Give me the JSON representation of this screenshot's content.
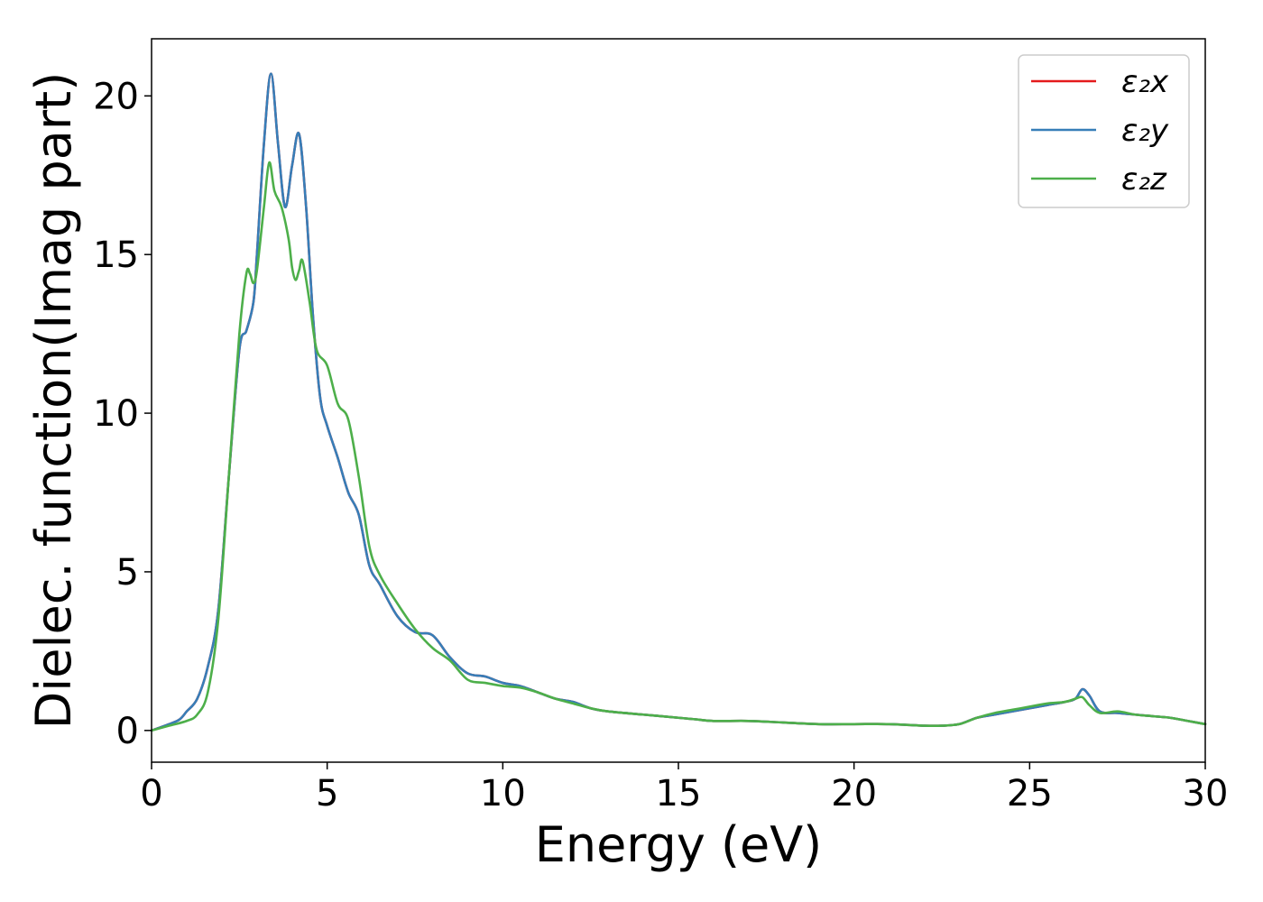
{
  "chart_data": {
    "type": "line",
    "title": "",
    "xlabel": "Energy (eV)",
    "ylabel": "Dielec. function(Imag part)",
    "xlim": [
      0,
      30
    ],
    "ylim": [
      -1,
      21.8
    ],
    "xticks": [
      "0",
      "5",
      "10",
      "15",
      "20",
      "25",
      "30"
    ],
    "yticks": [
      "0",
      "5",
      "10",
      "15",
      "20"
    ],
    "grid": false,
    "legend_position": "top-right",
    "series": [
      {
        "name": "ε₂x",
        "color": "#e41a1c",
        "x": [
          0,
          0.5,
          0.8,
          1.0,
          1.3,
          1.6,
          1.9,
          2.2,
          2.5,
          2.7,
          2.9,
          3.0,
          3.2,
          3.4,
          3.6,
          3.8,
          4.0,
          4.2,
          4.4,
          4.6,
          4.8,
          5.0,
          5.3,
          5.6,
          5.9,
          6.2,
          6.5,
          7.0,
          7.5,
          8.0,
          8.5,
          9.0,
          9.5,
          10.0,
          10.5,
          11.0,
          11.5,
          12.0,
          12.5,
          13.0,
          14.0,
          15.0,
          15.5,
          16.0,
          17.0,
          18.0,
          19.0,
          20.0,
          21.0,
          22.0,
          22.5,
          23.0,
          23.5,
          24.0,
          24.5,
          25.0,
          25.5,
          26.0,
          26.3,
          26.5,
          26.7,
          27.0,
          27.5,
          28.0,
          28.5,
          29.0,
          29.5,
          30.0
        ],
        "values": [
          0,
          0.2,
          0.35,
          0.6,
          1.0,
          2.0,
          3.8,
          8.0,
          12.0,
          12.6,
          13.5,
          15.0,
          18.5,
          20.7,
          18.5,
          16.5,
          17.8,
          18.8,
          16.5,
          13.0,
          10.5,
          9.6,
          8.6,
          7.5,
          6.8,
          5.2,
          4.6,
          3.6,
          3.1,
          3.0,
          2.3,
          1.8,
          1.7,
          1.5,
          1.4,
          1.2,
          1.0,
          0.9,
          0.7,
          0.6,
          0.5,
          0.4,
          0.35,
          0.3,
          0.3,
          0.25,
          0.2,
          0.2,
          0.2,
          0.15,
          0.15,
          0.2,
          0.4,
          0.5,
          0.6,
          0.7,
          0.8,
          0.9,
          1.0,
          1.3,
          1.1,
          0.6,
          0.55,
          0.5,
          0.45,
          0.4,
          0.3,
          0.2
        ]
      },
      {
        "name": "ε₂y",
        "color": "#377eb8",
        "x": [
          0,
          0.5,
          0.8,
          1.0,
          1.3,
          1.6,
          1.9,
          2.2,
          2.5,
          2.7,
          2.9,
          3.0,
          3.2,
          3.4,
          3.6,
          3.8,
          4.0,
          4.2,
          4.4,
          4.6,
          4.8,
          5.0,
          5.3,
          5.6,
          5.9,
          6.2,
          6.5,
          7.0,
          7.5,
          8.0,
          8.5,
          9.0,
          9.5,
          10.0,
          10.5,
          11.0,
          11.5,
          12.0,
          12.5,
          13.0,
          14.0,
          15.0,
          15.5,
          16.0,
          17.0,
          18.0,
          19.0,
          20.0,
          21.0,
          22.0,
          22.5,
          23.0,
          23.5,
          24.0,
          24.5,
          25.0,
          25.5,
          26.0,
          26.3,
          26.5,
          26.7,
          27.0,
          27.5,
          28.0,
          28.5,
          29.0,
          29.5,
          30.0
        ],
        "values": [
          0,
          0.2,
          0.35,
          0.6,
          1.0,
          2.0,
          3.8,
          8.0,
          12.0,
          12.6,
          13.5,
          15.0,
          18.5,
          20.7,
          18.5,
          16.5,
          17.8,
          18.8,
          16.5,
          13.0,
          10.5,
          9.6,
          8.6,
          7.5,
          6.8,
          5.2,
          4.6,
          3.6,
          3.1,
          3.0,
          2.3,
          1.8,
          1.7,
          1.5,
          1.4,
          1.2,
          1.0,
          0.9,
          0.7,
          0.6,
          0.5,
          0.4,
          0.35,
          0.3,
          0.3,
          0.25,
          0.2,
          0.2,
          0.2,
          0.15,
          0.15,
          0.2,
          0.4,
          0.5,
          0.6,
          0.7,
          0.8,
          0.9,
          1.0,
          1.3,
          1.1,
          0.6,
          0.55,
          0.5,
          0.45,
          0.4,
          0.3,
          0.2
        ]
      },
      {
        "name": "ε₂z",
        "color": "#4daf4a",
        "x": [
          0,
          0.5,
          1.0,
          1.3,
          1.6,
          1.9,
          2.2,
          2.5,
          2.7,
          2.8,
          2.9,
          3.0,
          3.2,
          3.35,
          3.5,
          3.7,
          3.9,
          4.0,
          4.1,
          4.2,
          4.3,
          4.5,
          4.7,
          5.0,
          5.3,
          5.6,
          5.9,
          6.2,
          6.5,
          7.0,
          7.5,
          8.0,
          8.5,
          9.0,
          9.5,
          10.0,
          10.5,
          11.0,
          11.5,
          12.0,
          12.5,
          13.0,
          14.0,
          15.0,
          15.5,
          16.0,
          17.0,
          18.0,
          19.0,
          20.0,
          21.0,
          22.0,
          22.5,
          23.0,
          23.5,
          24.0,
          24.5,
          25.0,
          25.5,
          26.0,
          26.3,
          26.5,
          26.7,
          27.0,
          27.5,
          28.0,
          28.5,
          29.0,
          29.5,
          30.0
        ],
        "values": [
          0,
          0.15,
          0.3,
          0.5,
          1.2,
          3.5,
          8.0,
          12.5,
          14.4,
          14.4,
          14.1,
          14.5,
          16.5,
          17.9,
          17.0,
          16.5,
          15.5,
          14.6,
          14.2,
          14.5,
          14.8,
          13.5,
          12.0,
          11.5,
          10.3,
          9.8,
          8.0,
          5.8,
          4.9,
          4.0,
          3.2,
          2.6,
          2.2,
          1.6,
          1.5,
          1.4,
          1.35,
          1.2,
          1.0,
          0.85,
          0.7,
          0.6,
          0.5,
          0.4,
          0.35,
          0.3,
          0.3,
          0.25,
          0.2,
          0.2,
          0.2,
          0.15,
          0.15,
          0.2,
          0.4,
          0.55,
          0.65,
          0.75,
          0.85,
          0.9,
          1.0,
          1.05,
          0.8,
          0.55,
          0.6,
          0.5,
          0.45,
          0.4,
          0.3,
          0.2
        ]
      }
    ]
  }
}
